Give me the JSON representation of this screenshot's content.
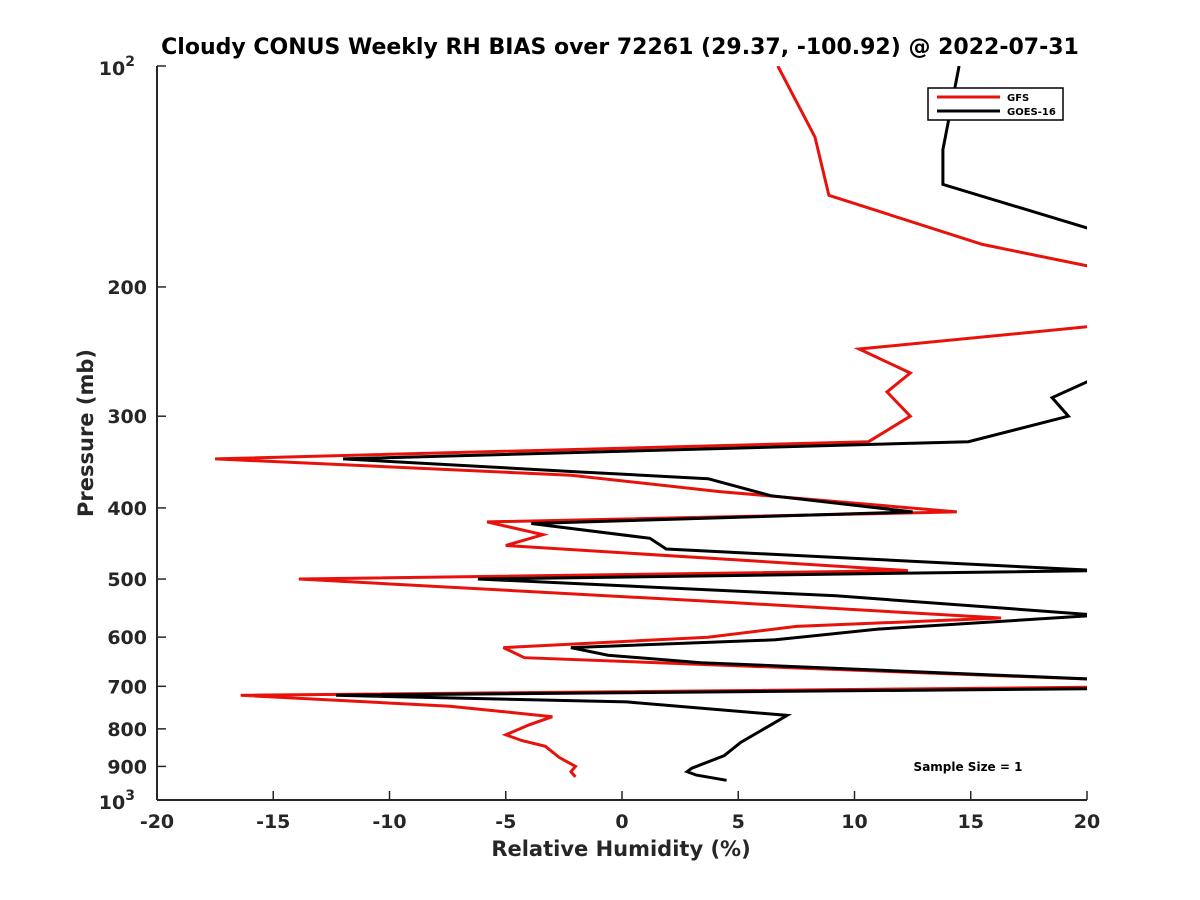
{
  "chart_data": {
    "type": "line",
    "title": "Cloudy CONUS Weekly RH BIAS over 72261 (29.37, -100.92) @ 2022-07-31",
    "xlabel": "Relative Humidity (%)",
    "ylabel": "Pressure (mb)",
    "xlim": [
      -20,
      20
    ],
    "ylim": [
      100,
      1000
    ],
    "y_scale": "log",
    "y_reversed": true,
    "x_ticks": [
      -20,
      -15,
      -10,
      -5,
      0,
      5,
      10,
      15,
      20
    ],
    "x_tick_labels": [
      "-20",
      "-15",
      "-10",
      "-5",
      "0",
      "5",
      "10",
      "15",
      "20"
    ],
    "y_tick_labels": [
      {
        "value": 100,
        "base": "10",
        "exp": "2"
      },
      {
        "value": 200,
        "base": "200",
        "exp": ""
      },
      {
        "value": 300,
        "base": "300",
        "exp": ""
      },
      {
        "value": 400,
        "base": "400",
        "exp": ""
      },
      {
        "value": 500,
        "base": "500",
        "exp": ""
      },
      {
        "value": 600,
        "base": "600",
        "exp": ""
      },
      {
        "value": 700,
        "base": "700",
        "exp": ""
      },
      {
        "value": 800,
        "base": "800",
        "exp": ""
      },
      {
        "value": 900,
        "base": "900",
        "exp": ""
      },
      {
        "value": 1000,
        "base": "10",
        "exp": "3"
      }
    ],
    "grid": false,
    "legend_position": "top-right",
    "annotation": "Sample Size = 1",
    "series": [
      {
        "name": "GFS",
        "color": "#e8120c",
        "points": [
          [
            6.7,
            100
          ],
          [
            8.3,
            125
          ],
          [
            8.9,
            150
          ],
          [
            15.5,
            175
          ],
          [
            21,
            190
          ],
          [
            21,
            225
          ],
          [
            10.2,
            243
          ],
          [
            12.4,
            262
          ],
          [
            11.4,
            278
          ],
          [
            12.4,
            300
          ],
          [
            10.6,
            325
          ],
          [
            -17.5,
            343
          ],
          [
            -2.2,
            361
          ],
          [
            4.2,
            380
          ],
          [
            14.4,
            405
          ],
          [
            -5.8,
            418
          ],
          [
            -3.4,
            435
          ],
          [
            -5,
            450
          ],
          [
            12.3,
            487
          ],
          [
            -13.9,
            500
          ],
          [
            4.6,
            538
          ],
          [
            16.3,
            565
          ],
          [
            7.5,
            580
          ],
          [
            3.7,
            600
          ],
          [
            -5.1,
            620
          ],
          [
            -4.2,
            640
          ],
          [
            20.5,
            685
          ],
          [
            20.5,
            702
          ],
          [
            -16.4,
            720
          ],
          [
            -7.4,
            745
          ],
          [
            -3,
            770
          ],
          [
            -4,
            790
          ],
          [
            -5,
            815
          ],
          [
            -4.3,
            830
          ],
          [
            -3.3,
            845
          ],
          [
            -2.7,
            875
          ],
          [
            -2,
            900
          ],
          [
            -2.2,
            915
          ],
          [
            -2,
            930
          ]
        ]
      },
      {
        "name": "GOES-16",
        "color": "#000000",
        "points": [
          [
            14.5,
            100
          ],
          [
            13.8,
            130
          ],
          [
            13.8,
            145
          ],
          [
            20.5,
            168
          ],
          [
            20.5,
            265
          ],
          [
            18.5,
            283
          ],
          [
            19.2,
            300
          ],
          [
            14.9,
            325
          ],
          [
            -12,
            343
          ],
          [
            -2,
            357
          ],
          [
            3.7,
            365
          ],
          [
            6.4,
            385
          ],
          [
            12.5,
            405
          ],
          [
            -3.9,
            420
          ],
          [
            1.2,
            440
          ],
          [
            1.9,
            455
          ],
          [
            20.5,
            487
          ],
          [
            -6.2,
            500
          ],
          [
            9.2,
            527
          ],
          [
            20.5,
            560
          ],
          [
            11,
            585
          ],
          [
            6.6,
            605
          ],
          [
            -2.2,
            620
          ],
          [
            -0.6,
            635
          ],
          [
            3.4,
            650
          ],
          [
            20.5,
            685
          ],
          [
            20.5,
            705
          ],
          [
            -12.3,
            720
          ],
          [
            0.2,
            735
          ],
          [
            7.1,
            767
          ],
          [
            6.4,
            790
          ],
          [
            5.1,
            835
          ],
          [
            4.4,
            870
          ],
          [
            3,
            905
          ],
          [
            2.8,
            915
          ],
          [
            3.2,
            925
          ],
          [
            4.5,
            940
          ]
        ]
      }
    ]
  }
}
